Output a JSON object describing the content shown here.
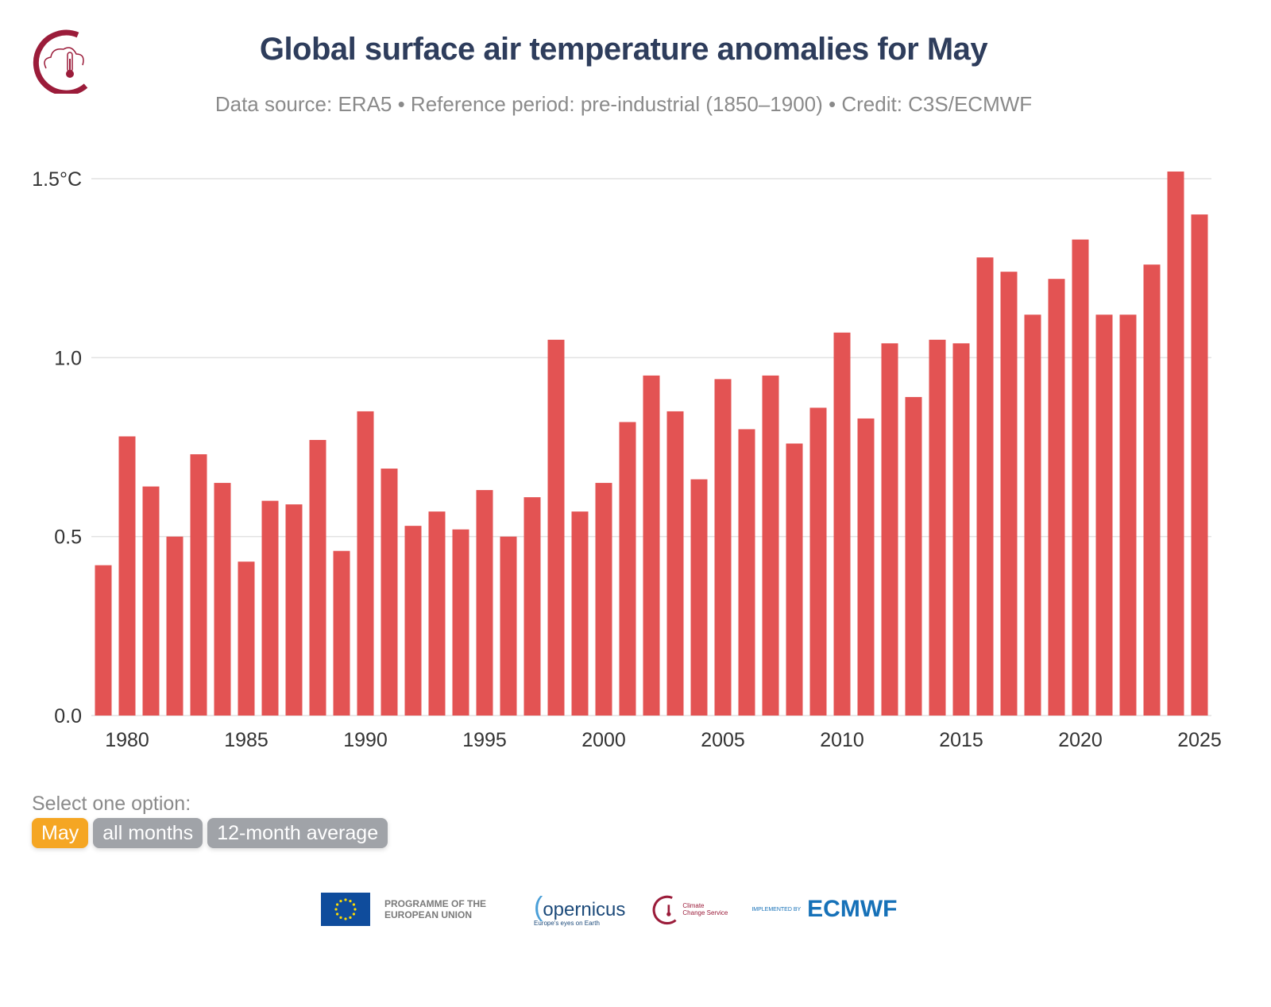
{
  "header": {
    "title": "Global surface air temperature anomalies for May",
    "subtitle": "Data source: ERA5 • Reference period: pre-industrial (1850–1900) • Credit: C3S/ECMWF",
    "logo_icon": "c3s-cloud-thermometer-icon"
  },
  "chart_data": {
    "type": "bar",
    "title": "Global surface air temperature anomalies for May",
    "xlabel": "",
    "ylabel": "",
    "ylim": [
      0,
      1.5
    ],
    "grid": true,
    "bar_color": "#e35353",
    "y_ticks": [
      "0.0",
      "0.5",
      "1.0",
      "1.5°C"
    ],
    "y_tick_values": [
      0,
      0.5,
      1.0,
      1.5
    ],
    "x_ticks": [
      "1980",
      "1985",
      "1990",
      "1995",
      "2000",
      "2005",
      "2010",
      "2015",
      "2020",
      "2025"
    ],
    "categories": [
      1979,
      1980,
      1981,
      1982,
      1983,
      1984,
      1985,
      1986,
      1987,
      1988,
      1989,
      1990,
      1991,
      1992,
      1993,
      1994,
      1995,
      1996,
      1997,
      1998,
      1999,
      2000,
      2001,
      2002,
      2003,
      2004,
      2005,
      2006,
      2007,
      2008,
      2009,
      2010,
      2011,
      2012,
      2013,
      2014,
      2015,
      2016,
      2017,
      2018,
      2019,
      2020,
      2021,
      2022,
      2023,
      2024,
      2025
    ],
    "values": [
      0.42,
      0.78,
      0.64,
      0.5,
      0.73,
      0.65,
      0.43,
      0.6,
      0.59,
      0.77,
      0.46,
      0.85,
      0.69,
      0.53,
      0.57,
      0.52,
      0.63,
      0.5,
      0.61,
      1.05,
      0.57,
      0.65,
      0.82,
      0.95,
      0.85,
      0.66,
      0.94,
      0.8,
      0.95,
      0.76,
      0.86,
      1.07,
      0.83,
      1.04,
      0.89,
      1.05,
      1.04,
      1.28,
      1.24,
      1.12,
      1.22,
      1.33,
      1.12,
      1.12,
      1.26,
      1.52,
      1.4
    ]
  },
  "selector": {
    "label": "Select one option:",
    "options": [
      "May",
      "all months",
      "12-month average"
    ],
    "active_color": "#f5a623"
  },
  "footer": {
    "eu_text": "PROGRAMME OF THE EUROPEAN UNION",
    "copernicus": "opernicus",
    "copernicus_tagline": "Europe's eyes on Earth",
    "c3s_line1": "Climate",
    "c3s_line2": "Change Service",
    "implemented": "IMPLEMENTED BY",
    "ecmwf": "ECMWF"
  }
}
